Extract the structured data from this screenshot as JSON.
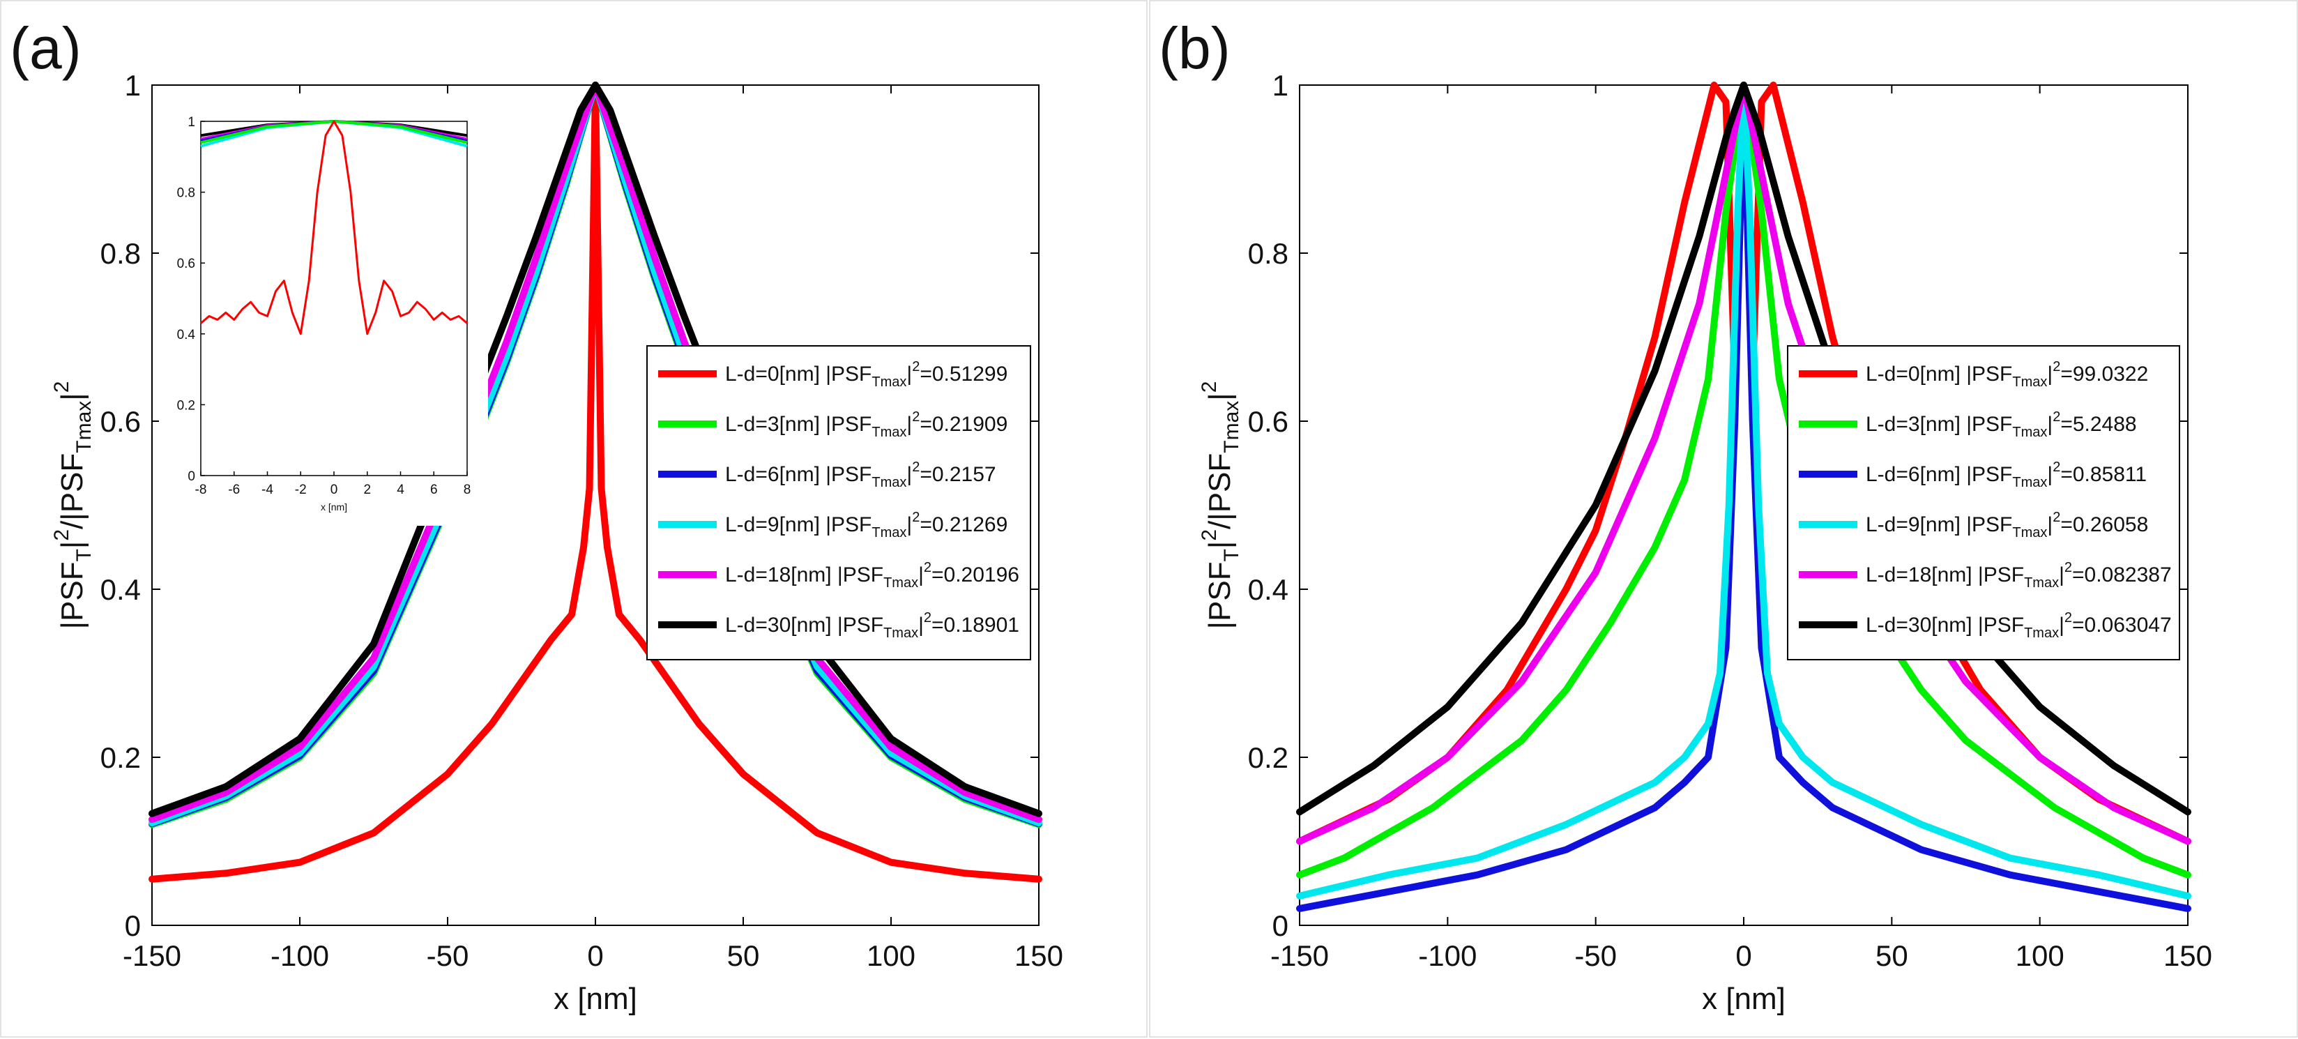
{
  "chart_data": [
    {
      "panel_label": "(a)",
      "type": "line",
      "xlabel": "x [nm]",
      "ylabel": {
        "main": "|PSF",
        "sub1": "T",
        "sup1": "2",
        "mid": "/|PSF",
        "sub2": "Tmax",
        "sup2": "2"
      },
      "xlim": [
        -150,
        150
      ],
      "ylim": [
        0,
        1
      ],
      "xticks": [
        -150,
        -100,
        -50,
        0,
        50,
        100,
        150
      ],
      "yticks": [
        0,
        0.2,
        0.4,
        0.6,
        0.8,
        1
      ],
      "xtick_labels": [
        "-150",
        "-100",
        "-50",
        "0",
        "50",
        "100",
        "150"
      ],
      "ytick_labels": [
        "0",
        "0.2",
        "0.4",
        "0.6",
        "0.8",
        "1"
      ],
      "legend": {
        "location": "center-right",
        "prefix": "|PSF",
        "sub": "Tmax",
        "sup": "2"
      },
      "series": [
        {
          "name": "L-d=0[nm]",
          "psf_value": "=0.51299",
          "color": "#ff0000",
          "x": [
            -150,
            -125,
            -100,
            -75,
            -50,
            -35,
            -25,
            -15,
            -8,
            -4,
            -2,
            0,
            2,
            4,
            8,
            15,
            25,
            35,
            50,
            75,
            100,
            125,
            150
          ],
          "y": [
            0.055,
            0.062,
            0.075,
            0.11,
            0.18,
            0.24,
            0.29,
            0.34,
            0.37,
            0.45,
            0.52,
            1.0,
            0.52,
            0.45,
            0.37,
            0.34,
            0.29,
            0.24,
            0.18,
            0.11,
            0.075,
            0.062,
            0.055
          ]
        },
        {
          "name": "L-d=3[nm]",
          "psf_value": "=0.21909",
          "color": "#00ee00",
          "x": [
            -150,
            -125,
            -100,
            -75,
            -50,
            -40,
            -30,
            -20,
            -10,
            0,
            10,
            20,
            30,
            40,
            50,
            75,
            100,
            125,
            150
          ],
          "y": [
            0.12,
            0.15,
            0.2,
            0.3,
            0.5,
            0.58,
            0.67,
            0.77,
            0.88,
            1.0,
            0.88,
            0.77,
            0.67,
            0.58,
            0.5,
            0.3,
            0.2,
            0.15,
            0.12
          ]
        },
        {
          "name": "L-d=6[nm]",
          "psf_value": "=0.2157",
          "color": "#1010dd",
          "x": [
            -150,
            -125,
            -100,
            -75,
            -50,
            -40,
            -30,
            -20,
            -10,
            0,
            10,
            20,
            30,
            40,
            50,
            75,
            100,
            125,
            150
          ],
          "y": [
            0.121,
            0.152,
            0.202,
            0.303,
            0.503,
            0.583,
            0.673,
            0.773,
            0.883,
            1.0,
            0.883,
            0.773,
            0.673,
            0.583,
            0.503,
            0.303,
            0.202,
            0.152,
            0.121
          ]
        },
        {
          "name": "L-d=9[nm]",
          "psf_value": "=0.21269",
          "color": "#00e8ee",
          "x": [
            -150,
            -125,
            -100,
            -75,
            -50,
            -40,
            -30,
            -20,
            -10,
            0,
            10,
            20,
            30,
            40,
            50,
            75,
            100,
            125,
            150
          ],
          "y": [
            0.122,
            0.154,
            0.205,
            0.308,
            0.508,
            0.588,
            0.678,
            0.778,
            0.887,
            1.0,
            0.887,
            0.778,
            0.678,
            0.588,
            0.508,
            0.308,
            0.205,
            0.154,
            0.122
          ]
        },
        {
          "name": "L-d=18[nm]",
          "psf_value": "=0.20196",
          "color": "#ee00ee",
          "x": [
            -150,
            -125,
            -100,
            -75,
            -50,
            -40,
            -30,
            -20,
            -10,
            0,
            10,
            20,
            30,
            40,
            50,
            75,
            100,
            125,
            150
          ],
          "y": [
            0.126,
            0.158,
            0.212,
            0.318,
            0.525,
            0.605,
            0.695,
            0.795,
            0.9,
            1.0,
            0.9,
            0.795,
            0.695,
            0.605,
            0.525,
            0.318,
            0.212,
            0.158,
            0.126
          ]
        },
        {
          "name": "L-d=30[nm]",
          "psf_value": "=0.18901",
          "color": "#000000",
          "x": [
            -150,
            -125,
            -100,
            -75,
            -50,
            -40,
            -30,
            -20,
            -10,
            -5,
            0,
            5,
            10,
            20,
            30,
            40,
            50,
            75,
            100,
            125,
            150
          ],
          "y": [
            0.133,
            0.165,
            0.222,
            0.335,
            0.555,
            0.635,
            0.725,
            0.82,
            0.92,
            0.97,
            1.0,
            0.97,
            0.92,
            0.82,
            0.725,
            0.635,
            0.555,
            0.335,
            0.222,
            0.165,
            0.133
          ]
        }
      ],
      "inset": {
        "type": "line",
        "xlabel": "x [nm]",
        "xlim": [
          -8,
          8
        ],
        "ylim": [
          0,
          1
        ],
        "xticks": [
          -8,
          -6,
          -4,
          -2,
          0,
          2,
          4,
          6,
          8
        ],
        "yticks": [
          0,
          0.2,
          0.4,
          0.6,
          0.8,
          1
        ],
        "xtick_labels": [
          "-8",
          "-6",
          "-4",
          "-2",
          "0",
          "2",
          "4",
          "6",
          "8"
        ],
        "ytick_labels": [
          "0",
          "0.2",
          "0.4",
          "0.6",
          "0.8",
          "1"
        ],
        "series": [
          {
            "name": "L-d=0[nm]",
            "color": "#ff0000",
            "x": [
              -8,
              -7.5,
              -7,
              -6.5,
              -6,
              -5.5,
              -5,
              -4.5,
              -4,
              -3.5,
              -3,
              -2.5,
              -2,
              -1.5,
              -1,
              -0.5,
              0,
              0.5,
              1,
              1.5,
              2,
              2.5,
              3,
              3.5,
              4,
              4.5,
              5,
              5.5,
              6,
              6.5,
              7,
              7.5,
              8
            ],
            "y": [
              0.43,
              0.45,
              0.44,
              0.46,
              0.44,
              0.47,
              0.49,
              0.46,
              0.45,
              0.52,
              0.55,
              0.46,
              0.4,
              0.55,
              0.8,
              0.96,
              1.0,
              0.96,
              0.8,
              0.55,
              0.4,
              0.46,
              0.55,
              0.52,
              0.45,
              0.46,
              0.49,
              0.47,
              0.44,
              0.46,
              0.44,
              0.45,
              0.43
            ]
          },
          {
            "name": "L-d=3[nm]",
            "color": "#00ee00",
            "x": [
              -8,
              -4,
              0,
              4,
              8
            ],
            "y": [
              0.94,
              0.985,
              1.0,
              0.985,
              0.94
            ]
          },
          {
            "name": "L-d=6[nm]",
            "color": "#1010dd",
            "x": [
              -8,
              -4,
              0,
              4,
              8
            ],
            "y": [
              0.945,
              0.986,
              1.0,
              0.986,
              0.945
            ]
          },
          {
            "name": "L-d=9[nm]",
            "color": "#00e8ee",
            "x": [
              -8,
              -4,
              0,
              4,
              8
            ],
            "y": [
              0.93,
              0.982,
              1.0,
              0.982,
              0.93
            ]
          },
          {
            "name": "L-d=18[nm]",
            "color": "#ee00ee",
            "x": [
              -8,
              -4,
              0,
              4,
              8
            ],
            "y": [
              0.95,
              0.988,
              1.0,
              0.988,
              0.95
            ]
          },
          {
            "name": "L-d=30[nm]",
            "color": "#000000",
            "x": [
              -8,
              -4,
              0,
              4,
              8
            ],
            "y": [
              0.96,
              0.99,
              1.0,
              0.99,
              0.96
            ]
          }
        ]
      }
    },
    {
      "panel_label": "(b)",
      "type": "line",
      "xlabel": "x [nm]",
      "ylabel": {
        "main": "|PSF",
        "sub1": "T",
        "sup1": "2",
        "mid": "/|PSF",
        "sub2": "Tmax",
        "sup2": "2"
      },
      "xlim": [
        -150,
        150
      ],
      "ylim": [
        0,
        1
      ],
      "xticks": [
        -150,
        -100,
        -50,
        0,
        50,
        100,
        150
      ],
      "yticks": [
        0,
        0.2,
        0.4,
        0.6,
        0.8,
        1
      ],
      "xtick_labels": [
        "-150",
        "-100",
        "-50",
        "0",
        "50",
        "100",
        "150"
      ],
      "ytick_labels": [
        "0",
        "0.2",
        "0.4",
        "0.6",
        "0.8",
        "1"
      ],
      "legend": {
        "location": "center-right",
        "prefix": "|PSF",
        "sub": "Tmax",
        "sup": "2"
      },
      "series": [
        {
          "name": "L-d=0[nm]",
          "psf_value": "=99.0322",
          "color": "#ff0000",
          "x": [
            -150,
            -120,
            -100,
            -80,
            -70,
            -60,
            -50,
            -40,
            -30,
            -20,
            -10,
            -6,
            -3,
            0,
            3,
            6,
            10,
            20,
            30,
            40,
            50,
            60,
            70,
            80,
            100,
            120,
            150
          ],
          "y": [
            0.1,
            0.15,
            0.2,
            0.28,
            0.34,
            0.4,
            0.47,
            0.58,
            0.7,
            0.86,
            1.0,
            0.98,
            0.65,
            1.0,
            0.65,
            0.98,
            1.0,
            0.86,
            0.7,
            0.58,
            0.47,
            0.4,
            0.34,
            0.28,
            0.2,
            0.15,
            0.1
          ]
        },
        {
          "name": "L-d=3[nm]",
          "psf_value": "=5.2488",
          "color": "#00ee00",
          "x": [
            -150,
            -135,
            -120,
            -105,
            -90,
            -75,
            -60,
            -45,
            -30,
            -20,
            -12,
            -6,
            0,
            6,
            12,
            20,
            30,
            45,
            60,
            75,
            90,
            105,
            120,
            135,
            150
          ],
          "y": [
            0.06,
            0.08,
            0.11,
            0.14,
            0.18,
            0.22,
            0.28,
            0.36,
            0.45,
            0.53,
            0.65,
            0.85,
            1.0,
            0.85,
            0.65,
            0.53,
            0.45,
            0.36,
            0.28,
            0.22,
            0.18,
            0.14,
            0.11,
            0.08,
            0.06
          ]
        },
        {
          "name": "L-d=6[nm]",
          "psf_value": "=0.85811",
          "color": "#1010dd",
          "x": [
            -150,
            -120,
            -90,
            -60,
            -30,
            -20,
            -12,
            -6,
            -3,
            0,
            3,
            6,
            12,
            20,
            30,
            60,
            90,
            120,
            150
          ],
          "y": [
            0.02,
            0.04,
            0.06,
            0.09,
            0.14,
            0.17,
            0.2,
            0.33,
            0.6,
            1.0,
            0.6,
            0.33,
            0.2,
            0.17,
            0.14,
            0.09,
            0.06,
            0.04,
            0.02
          ]
        },
        {
          "name": "L-d=9[nm]",
          "psf_value": "=0.26058",
          "color": "#00e8ee",
          "x": [
            -150,
            -120,
            -90,
            -60,
            -30,
            -20,
            -12,
            -8,
            -5,
            -2,
            0,
            2,
            5,
            8,
            12,
            20,
            30,
            60,
            90,
            120,
            150
          ],
          "y": [
            0.035,
            0.06,
            0.08,
            0.12,
            0.17,
            0.2,
            0.24,
            0.3,
            0.5,
            0.85,
            1.0,
            0.85,
            0.5,
            0.3,
            0.24,
            0.2,
            0.17,
            0.12,
            0.08,
            0.06,
            0.035
          ]
        },
        {
          "name": "L-d=18[nm]",
          "psf_value": "=0.082387",
          "color": "#ee00ee",
          "x": [
            -150,
            -125,
            -100,
            -75,
            -50,
            -30,
            -15,
            -8,
            0,
            8,
            15,
            30,
            50,
            75,
            100,
            125,
            150
          ],
          "y": [
            0.1,
            0.14,
            0.2,
            0.29,
            0.42,
            0.58,
            0.74,
            0.86,
            1.0,
            0.86,
            0.74,
            0.58,
            0.42,
            0.29,
            0.2,
            0.14,
            0.1
          ]
        },
        {
          "name": "L-d=30[nm]",
          "psf_value": "=0.063047",
          "color": "#000000",
          "x": [
            -150,
            -125,
            -100,
            -75,
            -50,
            -30,
            -15,
            -5,
            0,
            5,
            15,
            30,
            50,
            75,
            100,
            125,
            150
          ],
          "y": [
            0.135,
            0.19,
            0.26,
            0.36,
            0.5,
            0.66,
            0.82,
            0.95,
            1.0,
            0.95,
            0.82,
            0.66,
            0.5,
            0.36,
            0.26,
            0.19,
            0.135
          ]
        }
      ]
    }
  ]
}
